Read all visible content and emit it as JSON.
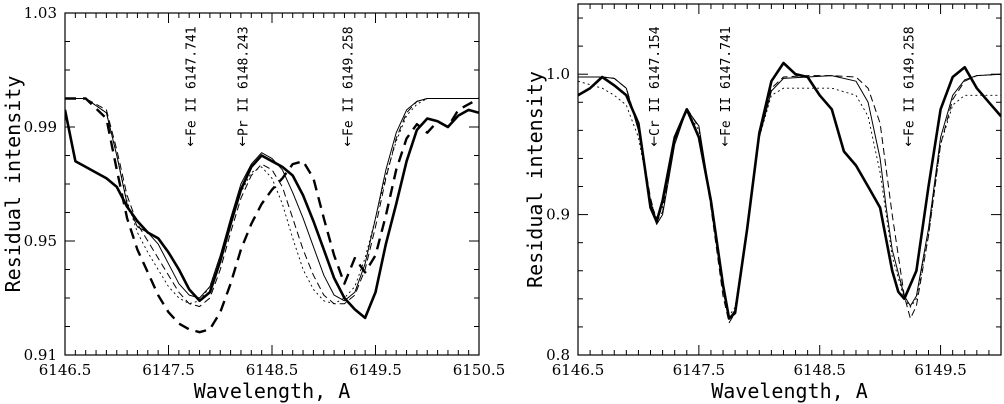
{
  "chart_data": [
    {
      "type": "line",
      "xlabel": "Wavelength, A",
      "ylabel": "Residual intensity",
      "xlim": [
        6146.5,
        6150.5
      ],
      "ylim": [
        0.91,
        1.03
      ],
      "xticks": [
        6146.5,
        6147.5,
        6148.5,
        6149.5,
        6150.5
      ],
      "xtick_labels": [
        "6146.5",
        "6147.5",
        "6148.5",
        "6149.5",
        "6150.5"
      ],
      "yticks": [
        0.91,
        0.95,
        0.99,
        1.03
      ],
      "ytick_labels": [
        "0.91",
        "0.95",
        "0.99",
        "1.03"
      ],
      "annotations": [
        {
          "text": "Fe II 6147.741",
          "x": 6147.741
        },
        {
          "text": "Pr II 6148.243",
          "x": 6148.243
        },
        {
          "text": "Fe II 6149.258",
          "x": 6149.258
        }
      ],
      "series": [
        {
          "style": "observed, thick solid",
          "x": [
            6146.5,
            6146.6,
            6146.7,
            6146.8,
            6146.9,
            6147.0,
            6147.1,
            6147.2,
            6147.3,
            6147.4,
            6147.5,
            6147.6,
            6147.7,
            6147.8,
            6147.9,
            6148.0,
            6148.1,
            6148.2,
            6148.3,
            6148.4,
            6148.5,
            6148.6,
            6148.7,
            6148.8,
            6148.9,
            6149.0,
            6149.1,
            6149.2,
            6149.3,
            6149.4,
            6149.5,
            6149.6,
            6149.7,
            6149.8,
            6149.9,
            6150.0,
            6150.1,
            6150.2,
            6150.3,
            6150.4,
            6150.5
          ],
          "y": [
            0.996,
            0.978,
            0.976,
            0.974,
            0.972,
            0.969,
            0.962,
            0.957,
            0.953,
            0.951,
            0.946,
            0.94,
            0.933,
            0.929,
            0.932,
            0.943,
            0.956,
            0.968,
            0.976,
            0.98,
            0.978,
            0.976,
            0.973,
            0.966,
            0.957,
            0.947,
            0.937,
            0.93,
            0.926,
            0.923,
            0.932,
            0.949,
            0.963,
            0.978,
            0.989,
            0.993,
            0.992,
            0.99,
            0.994,
            0.996,
            0.995
          ]
        },
        {
          "style": "thin solid",
          "x": [
            6146.5,
            6146.7,
            6146.9,
            6147.0,
            6147.1,
            6147.2,
            6147.3,
            6147.4,
            6147.5,
            6147.6,
            6147.7,
            6147.8,
            6147.9,
            6148.0,
            6148.1,
            6148.2,
            6148.3,
            6148.4,
            6148.5,
            6148.6,
            6148.7,
            6148.8,
            6148.9,
            6149.0,
            6149.1,
            6149.2,
            6149.3,
            6149.4,
            6149.5,
            6149.6,
            6149.7,
            6149.8,
            6149.9,
            6150.0,
            6150.2,
            6150.5
          ],
          "y": [
            1.0,
            1.0,
            0.995,
            0.98,
            0.963,
            0.955,
            0.953,
            0.949,
            0.942,
            0.935,
            0.931,
            0.93,
            0.934,
            0.945,
            0.958,
            0.97,
            0.977,
            0.981,
            0.979,
            0.975,
            0.967,
            0.958,
            0.948,
            0.938,
            0.931,
            0.929,
            0.932,
            0.942,
            0.958,
            0.975,
            0.988,
            0.996,
            0.999,
            1.0,
            1.0,
            1.0
          ]
        },
        {
          "style": "thin dashed",
          "x": [
            6146.5,
            6146.7,
            6146.9,
            6147.0,
            6147.1,
            6147.2,
            6147.3,
            6147.4,
            6147.5,
            6147.6,
            6147.7,
            6147.8,
            6147.9,
            6148.0,
            6148.1,
            6148.2,
            6148.3,
            6148.4,
            6148.5,
            6148.6,
            6148.7,
            6148.8,
            6148.9,
            6149.0,
            6149.1,
            6149.2,
            6149.3,
            6149.4,
            6149.5,
            6149.6,
            6149.7,
            6149.8,
            6149.9,
            6150.0,
            6150.2,
            6150.5
          ],
          "y": [
            1.0,
            1.0,
            0.996,
            0.982,
            0.966,
            0.956,
            0.95,
            0.944,
            0.938,
            0.932,
            0.928,
            0.927,
            0.93,
            0.94,
            0.953,
            0.965,
            0.973,
            0.977,
            0.975,
            0.969,
            0.958,
            0.947,
            0.938,
            0.931,
            0.928,
            0.928,
            0.931,
            0.94,
            0.955,
            0.972,
            0.986,
            0.995,
            0.999,
            1.0,
            1.0,
            1.0
          ]
        },
        {
          "style": "dotted",
          "x": [
            6146.5,
            6146.7,
            6146.9,
            6147.0,
            6147.1,
            6147.2,
            6147.3,
            6147.4,
            6147.5,
            6147.6,
            6147.7,
            6147.8,
            6147.9,
            6148.0,
            6148.1,
            6148.2,
            6148.3,
            6148.4,
            6148.5,
            6148.6,
            6148.7,
            6148.8,
            6148.9,
            6149.0,
            6149.1,
            6149.2,
            6149.3,
            6149.4,
            6149.5,
            6149.6,
            6149.7,
            6149.8,
            6149.9,
            6150.0,
            6150.2,
            6150.5
          ],
          "y": [
            1.0,
            1.0,
            0.995,
            0.98,
            0.964,
            0.953,
            0.946,
            0.94,
            0.934,
            0.93,
            0.928,
            0.929,
            0.934,
            0.945,
            0.957,
            0.967,
            0.974,
            0.976,
            0.972,
            0.963,
            0.951,
            0.94,
            0.933,
            0.929,
            0.928,
            0.93,
            0.934,
            0.944,
            0.958,
            0.973,
            0.985,
            0.994,
            0.998,
            1.0,
            1.0,
            1.0
          ]
        },
        {
          "style": "thick dashed",
          "x": [
            6146.5,
            6146.7,
            6146.9,
            6147.0,
            6147.1,
            6147.2,
            6147.3,
            6147.4,
            6147.5,
            6147.6,
            6147.7,
            6147.8,
            6147.9,
            6148.0,
            6148.1,
            6148.2,
            6148.3,
            6148.4,
            6148.5,
            6148.6,
            6148.7,
            6148.8,
            6148.9,
            6149.0,
            6149.1,
            6149.2,
            6149.3,
            6149.4,
            6149.5,
            6149.6,
            6149.7,
            6149.8,
            6149.9,
            6150.0,
            6150.1,
            6150.2,
            6150.3,
            6150.5
          ],
          "y": [
            1.0,
            1.0,
            0.993,
            0.975,
            0.958,
            0.947,
            0.939,
            0.931,
            0.925,
            0.921,
            0.919,
            0.918,
            0.919,
            0.925,
            0.935,
            0.947,
            0.956,
            0.963,
            0.968,
            0.972,
            0.977,
            0.978,
            0.972,
            0.958,
            0.945,
            0.935,
            0.944,
            0.939,
            0.945,
            0.959,
            0.975,
            0.986,
            0.991,
            0.988,
            0.992,
            0.99,
            0.996,
            1.0
          ]
        }
      ]
    },
    {
      "type": "line",
      "xlabel": "Wavelength, A",
      "ylabel": "Residual intensity",
      "xlim": [
        6146.5,
        6150.0
      ],
      "ylim": [
        0.8,
        1.05
      ],
      "xticks": [
        6146.5,
        6147.5,
        6148.5,
        6149.5
      ],
      "xtick_labels": [
        "6146.5",
        "6147.5",
        "6148.5",
        "6149.5"
      ],
      "yticks": [
        0.8,
        0.9,
        1.0
      ],
      "ytick_labels": [
        "0.8",
        "0.9",
        "1.0"
      ],
      "annotations": [
        {
          "text": "Cr II 6147.154",
          "x": 6147.154
        },
        {
          "text": "Fe II 6147.741",
          "x": 6147.741
        },
        {
          "text": "Fe II 6149.258",
          "x": 6149.258
        }
      ],
      "series": [
        {
          "style": "observed, thick solid",
          "x": [
            6146.5,
            6146.6,
            6146.7,
            6146.8,
            6146.9,
            6147.0,
            6147.05,
            6147.1,
            6147.15,
            6147.2,
            6147.3,
            6147.4,
            6147.5,
            6147.6,
            6147.7,
            6147.75,
            6147.8,
            6147.9,
            6148.0,
            6148.1,
            6148.2,
            6148.3,
            6148.4,
            6148.5,
            6148.6,
            6148.7,
            6148.8,
            6148.9,
            6149.0,
            6149.1,
            6149.15,
            6149.2,
            6149.3,
            6149.4,
            6149.5,
            6149.6,
            6149.7,
            6149.8,
            6149.9,
            6150.0
          ],
          "y": [
            0.985,
            0.99,
            0.998,
            0.992,
            0.985,
            0.965,
            0.935,
            0.905,
            0.895,
            0.91,
            0.955,
            0.975,
            0.955,
            0.91,
            0.85,
            0.826,
            0.83,
            0.89,
            0.958,
            0.995,
            1.008,
            1.0,
            0.998,
            0.985,
            0.975,
            0.945,
            0.935,
            0.92,
            0.905,
            0.86,
            0.845,
            0.84,
            0.86,
            0.92,
            0.975,
            0.998,
            1.005,
            0.99,
            0.98,
            0.97
          ]
        },
        {
          "style": "thin solid",
          "x": [
            6146.5,
            6146.7,
            6146.8,
            6146.9,
            6147.0,
            6147.1,
            6147.15,
            6147.2,
            6147.3,
            6147.4,
            6147.5,
            6147.6,
            6147.7,
            6147.75,
            6147.8,
            6147.9,
            6148.0,
            6148.1,
            6148.2,
            6148.4,
            6148.6,
            6148.8,
            6148.9,
            6149.0,
            6149.05,
            6149.1,
            6149.2,
            6149.25,
            6149.3,
            6149.4,
            6149.5,
            6149.6,
            6149.7,
            6149.8,
            6150.0
          ],
          "y": [
            0.998,
            0.998,
            0.997,
            0.99,
            0.96,
            0.91,
            0.893,
            0.9,
            0.95,
            0.975,
            0.963,
            0.91,
            0.847,
            0.826,
            0.832,
            0.89,
            0.955,
            0.988,
            0.997,
            0.998,
            0.999,
            0.995,
            0.98,
            0.94,
            0.905,
            0.875,
            0.842,
            0.835,
            0.842,
            0.89,
            0.955,
            0.985,
            0.996,
            0.999,
            1.0
          ]
        },
        {
          "style": "thin dashed",
          "x": [
            6146.5,
            6146.7,
            6146.8,
            6146.9,
            6147.0,
            6147.1,
            6147.15,
            6147.2,
            6147.3,
            6147.4,
            6147.5,
            6147.6,
            6147.7,
            6147.75,
            6147.8,
            6147.9,
            6148.0,
            6148.1,
            6148.2,
            6148.4,
            6148.6,
            6148.8,
            6148.9,
            6149.0,
            6149.1,
            6149.2,
            6149.25,
            6149.3,
            6149.4,
            6149.5,
            6149.6,
            6149.7,
            6149.8,
            6150.0
          ],
          "y": [
            0.998,
            0.998,
            0.997,
            0.99,
            0.962,
            0.912,
            0.895,
            0.902,
            0.952,
            0.976,
            0.962,
            0.905,
            0.842,
            0.823,
            0.83,
            0.892,
            0.958,
            0.99,
            0.998,
            0.999,
            0.999,
            0.998,
            0.99,
            0.965,
            0.9,
            0.842,
            0.826,
            0.835,
            0.885,
            0.95,
            0.982,
            0.995,
            0.999,
            1.0
          ]
        },
        {
          "style": "dotted",
          "x": [
            6146.5,
            6146.7,
            6146.8,
            6146.9,
            6147.0,
            6147.1,
            6147.15,
            6147.2,
            6147.3,
            6147.4,
            6147.5,
            6147.6,
            6147.7,
            6147.75,
            6147.8,
            6147.9,
            6148.0,
            6148.1,
            6148.2,
            6148.4,
            6148.6,
            6148.8,
            6148.9,
            6149.0,
            6149.05,
            6149.1,
            6149.2,
            6149.25,
            6149.3,
            6149.4,
            6149.5,
            6149.6,
            6149.7,
            6149.8,
            6150.0
          ],
          "y": [
            0.995,
            0.99,
            0.985,
            0.978,
            0.955,
            0.91,
            0.897,
            0.905,
            0.952,
            0.974,
            0.96,
            0.908,
            0.848,
            0.828,
            0.834,
            0.892,
            0.955,
            0.985,
            0.99,
            0.99,
            0.99,
            0.985,
            0.97,
            0.93,
            0.9,
            0.87,
            0.84,
            0.834,
            0.84,
            0.885,
            0.95,
            0.978,
            0.985,
            0.985,
            0.985
          ]
        }
      ]
    }
  ]
}
